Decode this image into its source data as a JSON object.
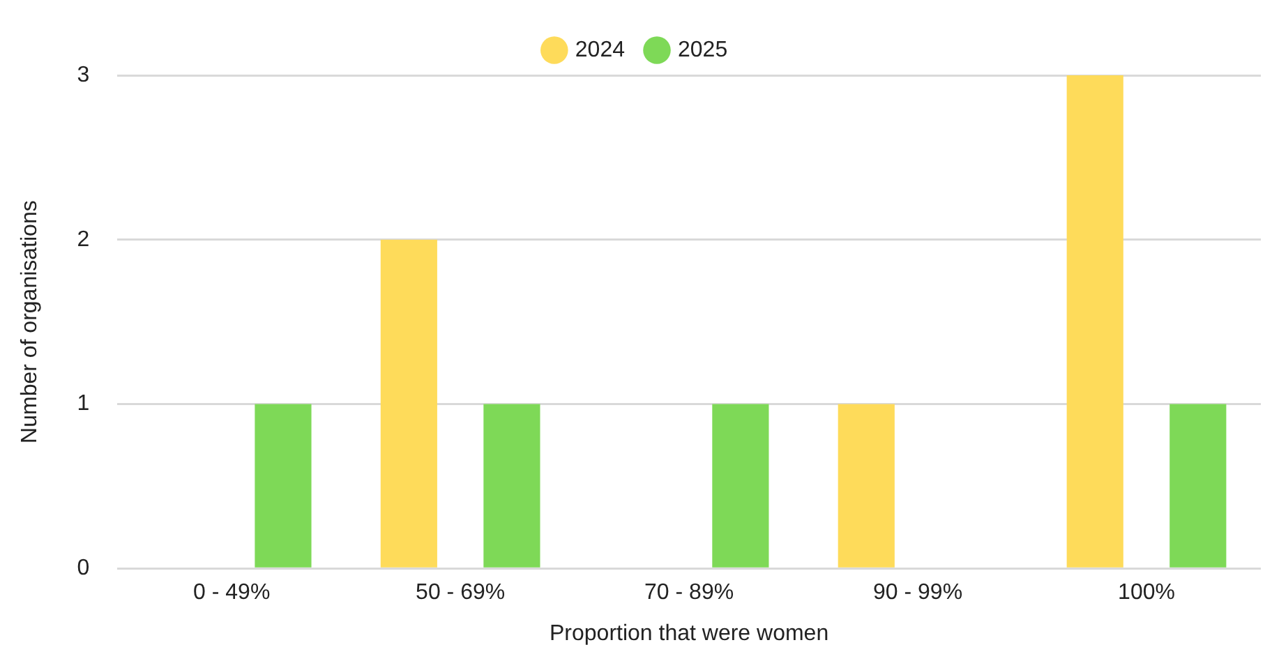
{
  "chart_data": {
    "type": "bar",
    "xlabel": "Proportion that were women",
    "ylabel": "Number of organisations",
    "categories": [
      "0 - 49%",
      "50 - 69%",
      "70 - 89%",
      "90 - 99%",
      "100%"
    ],
    "series": [
      {
        "name": "2024",
        "color": "#fedb5a",
        "values": [
          0,
          2,
          0,
          1,
          3
        ]
      },
      {
        "name": "2025",
        "color": "#7ed957",
        "values": [
          1,
          1,
          1,
          0,
          1
        ]
      }
    ],
    "ylim": [
      0,
      3
    ],
    "yticks": [
      0,
      1,
      2,
      3
    ],
    "grid": "y",
    "legend": "top"
  }
}
